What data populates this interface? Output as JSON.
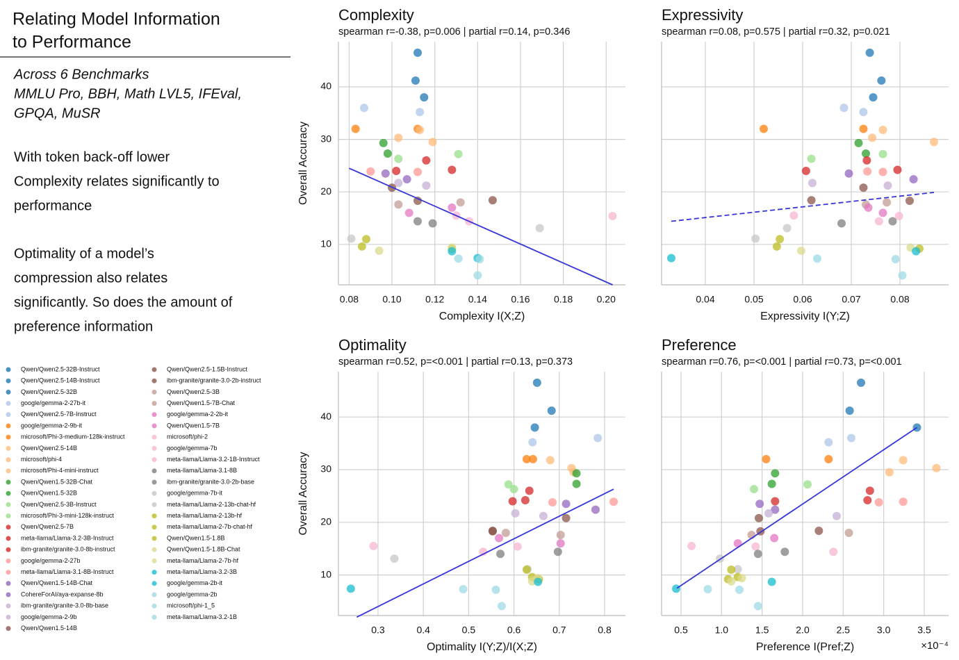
{
  "sidebar": {
    "title_lines": [
      "Relating Model Information",
      "to Performance"
    ],
    "benchmark_lines": [
      "Across 6 Benchmarks",
      "MMLU Pro, BBH, Math LVL5, IFEval,",
      "GPQA, MuSR"
    ],
    "paragraph1_lines": [
      "With token back-off lower",
      "Complexity relates significantly to",
      "performance"
    ],
    "paragraph2_lines": [
      "Optimality of a model’s",
      "compression also relates",
      "significantly. So does the amount of",
      "preference information"
    ]
  },
  "legend": {
    "names": [
      "Qwen/Qwen2.5-32B-Instruct",
      "Qwen/Qwen2.5-14B-Instruct",
      "Qwen/Qwen2.5-32B",
      "google/gemma-2-27b-it",
      "Qwen/Qwen2.5-7B-Instruct",
      "google/gemma-2-9b-it",
      "microsoft/Phi-3-medium-128k-instruct",
      "Qwen/Qwen2.5-14B",
      "microsoft/phi-4",
      "microsoft/Phi-4-mini-instruct",
      "Qwen/Qwen1.5-32B-Chat",
      "Qwen/Qwen1.5-32B",
      "Qwen/Qwen2.5-3B-Instruct",
      "microsoft/Phi-3-mini-128k-instruct",
      "Qwen/Qwen2.5-7B",
      "meta-llama/Llama-3.2-3B-Instruct",
      "ibm-granite/granite-3.0-8b-instruct",
      "google/gemma-2-27b",
      "meta-llama/Llama-3.1-8B-Instruct",
      "Qwen/Qwen1.5-14B-Chat",
      "CohereForAI/aya-expanse-8b",
      "ibm-granite/granite-3.0-8b-base",
      "google/gemma-2-9b",
      "Qwen/Qwen1.5-14B",
      "Qwen/Qwen2.5-1.5B-Instruct",
      "ibm-granite/granite-3.0-2b-instruct",
      "Qwen/Qwen2.5-3B",
      "Qwen/Qwen1.5-7B-Chat",
      "google/gemma-2-2b-it",
      "Qwen/Qwen1.5-7B",
      "microsoft/phi-2",
      "google/gemma-7b",
      "meta-llama/Llama-3.2-1B-Instruct",
      "meta-llama/Llama-3.1-8B",
      "ibm-granite/granite-3.0-2b-base",
      "google/gemma-7b-it",
      "meta-llama/Llama-2-13b-chat-hf",
      "meta-llama/Llama-2-13b-hf",
      "meta-llama/Llama-2-7b-chat-hf",
      "Qwen/Qwen1.5-1.8B",
      "Qwen/Qwen1.5-1.8B-Chat",
      "meta-llama/Llama-2-7b-hf",
      "meta-llama/Llama-3.2-3B",
      "google/gemma-2b-it",
      "google/gemma-2b",
      "microsoft/phi-1_5",
      "meta-llama/Llama-3.2-1B"
    ],
    "colors": [
      "#1f77b4",
      "#1f77b4",
      "#1f77b4",
      "#aec7e8",
      "#aec7e8",
      "#ff7f0e",
      "#ff7f0e",
      "#ffbb78",
      "#ffbb78",
      "#ffbb78",
      "#2ca02c",
      "#2ca02c",
      "#98df8a",
      "#98df8a",
      "#d62728",
      "#d62728",
      "#d62728",
      "#ff9896",
      "#ff9896",
      "#9467bd",
      "#9467bd",
      "#c5b0d5",
      "#c5b0d5",
      "#8c564b",
      "#8c564b",
      "#8c564b",
      "#c49c94",
      "#c49c94",
      "#e377c2",
      "#e377c2",
      "#f7b6d2",
      "#f7b6d2",
      "#f7b6d2",
      "#7f7f7f",
      "#7f7f7f",
      "#c7c7c7",
      "#c7c7c7",
      "#bcbd22",
      "#bcbd22",
      "#bcbd22",
      "#dbdb8d",
      "#dbdb8d",
      "#17becf",
      "#17becf",
      "#9edae5",
      "#9edae5",
      "#9edae5"
    ]
  },
  "chart_data": [
    {
      "type": "scatter",
      "title": "Complexity",
      "subtitle": "spearman r=-0.38, p=0.006 | partial r=0.14, p=0.346",
      "xlabel": "Complexity I(X;Z)",
      "ylabel": "Overall Accuracy",
      "x": [
        0.112,
        0.111,
        0.115,
        0.087,
        0.113,
        0.083,
        0.112,
        0.103,
        0.119,
        0.113,
        0.096,
        0.098,
        0.131,
        0.103,
        0.116,
        0.128,
        0.102,
        0.09,
        0.112,
        0.097,
        0.107,
        0.103,
        0.116,
        0.1,
        0.147,
        0.112,
        0.132,
        0.103,
        0.128,
        0.108,
        0.13,
        0.203,
        0.136,
        0.112,
        0.119,
        0.169,
        0.081,
        0.088,
        0.086,
        0.128,
        0.128,
        0.094,
        0.128,
        0.14,
        0.131,
        0.141,
        0.14
      ],
      "values": [
        46.5,
        41.2,
        38,
        36,
        35.2,
        32,
        32,
        30.3,
        29.5,
        31.8,
        29.3,
        27.3,
        27.2,
        26.3,
        26,
        24.2,
        24,
        23.9,
        23.8,
        23.5,
        22.4,
        21.7,
        21.2,
        20.8,
        18.4,
        18.3,
        18,
        17.6,
        17,
        16,
        15.5,
        15.4,
        14.4,
        14.4,
        14,
        13.1,
        11.1,
        11,
        9.6,
        9.2,
        9.4,
        8.8,
        8.7,
        7.4,
        7.3,
        7.2,
        4.1
      ],
      "xlim": [
        0.075,
        0.209
      ],
      "ylim": [
        2.3,
        48.6
      ],
      "xticks": [
        0.08,
        {
          "value": 0.1,
          "label": "0.10"
        },
        0.12,
        0.14,
        0.16,
        0.18,
        {
          "value": 0.2,
          "label": "0.20"
        }
      ],
      "yticks": [
        10,
        20,
        30,
        40
      ],
      "grid": true,
      "show_ytick_labels": true,
      "fit": {
        "x": [
          0.08,
          0.203
        ],
        "y": [
          24.5,
          2.3
        ],
        "color": "#3535d8",
        "style": "solid"
      }
    },
    {
      "type": "scatter",
      "title": "Expressivity",
      "subtitle": "spearman r=0.08, p=0.575 | partial r=0.32, p=0.021",
      "xlabel": "Expressivity I(Y;Z)",
      "x": [
        0.0738,
        0.0762,
        0.0745,
        0.0685,
        0.0725,
        0.052,
        0.0725,
        0.0743,
        0.087,
        0.0765,
        0.0715,
        0.073,
        0.0765,
        0.0618,
        0.0732,
        0.0795,
        0.0607,
        0.0733,
        0.0765,
        0.0695,
        0.0828,
        0.062,
        0.0775,
        0.0725,
        0.0618,
        0.082,
        0.0773,
        0.073,
        0.0735,
        0.0765,
        0.0582,
        0.0798,
        0.0757,
        0.0785,
        0.068,
        0.0568,
        0.0503,
        0.0553,
        0.0547,
        0.084,
        0.0822,
        0.0597,
        0.0833,
        0.033,
        0.063,
        0.0791,
        0.0805
      ],
      "values": [
        46.5,
        41.2,
        38,
        36,
        35.2,
        32,
        32,
        30.3,
        29.5,
        31.8,
        29.3,
        27.3,
        27.2,
        26.3,
        26,
        24.2,
        24,
        23.9,
        23.8,
        23.5,
        22.4,
        21.7,
        21.2,
        20.8,
        18.4,
        18.3,
        18,
        17.6,
        17,
        16,
        15.5,
        15.4,
        14.4,
        14.4,
        14,
        13.1,
        11.1,
        11,
        9.6,
        9.2,
        9.4,
        8.8,
        8.7,
        7.4,
        7.3,
        7.2,
        4.1
      ],
      "xlim": [
        0.031,
        0.09
      ],
      "ylim": [
        2.3,
        48.6
      ],
      "xticks": [
        0.04,
        0.05,
        0.06,
        0.07,
        0.08
      ],
      "yticks": [
        10,
        20,
        30,
        40
      ],
      "grid": true,
      "show_ytick_labels": false,
      "fit": {
        "x": [
          0.033,
          0.087
        ],
        "y": [
          14.4,
          19.9
        ],
        "color": "#3535d8",
        "style": "dashed"
      }
    },
    {
      "type": "scatter",
      "title": "Optimality",
      "subtitle": "spearman r=0.52, p=<0.001 | partial r=0.13, p=0.373",
      "xlabel": "Optimality I(Y;Z)/I(X;Z)",
      "ylabel": "Overall Accuracy",
      "x": [
        0.651,
        0.683,
        0.646,
        0.785,
        0.641,
        0.628,
        0.642,
        0.727,
        0.732,
        0.68,
        0.738,
        0.738,
        0.588,
        0.6,
        0.634,
        0.625,
        0.597,
        0.82,
        0.685,
        0.715,
        0.78,
        0.603,
        0.665,
        0.715,
        0.553,
        0.553,
        0.582,
        0.703,
        0.567,
        0.703,
        0.29,
        0.608,
        0.532,
        0.697,
        0.57,
        0.336,
        0.63,
        0.628,
        0.64,
        0.655,
        0.652,
        0.64,
        0.653,
        0.24,
        0.488,
        0.56,
        0.573
      ],
      "values": [
        46.5,
        41.2,
        38,
        36,
        35.2,
        32,
        32,
        30.3,
        29.5,
        31.8,
        29.3,
        27.3,
        27.2,
        26.3,
        26,
        24.2,
        24,
        23.9,
        23.8,
        23.5,
        22.4,
        21.7,
        21.2,
        20.8,
        18.4,
        18.3,
        18,
        17.6,
        17,
        16,
        15.5,
        15.4,
        14.4,
        14.4,
        14,
        13.1,
        11.1,
        11,
        9.6,
        9.2,
        9.4,
        8.8,
        8.7,
        7.4,
        7.3,
        7.2,
        4.1
      ],
      "xlim": [
        0.2126,
        0.846
      ],
      "ylim": [
        2.3,
        48.6
      ],
      "xticks": [
        0.3,
        0.4,
        0.5,
        0.6,
        0.7,
        0.8
      ],
      "yticks": [
        10,
        20,
        30,
        40
      ],
      "grid": true,
      "show_ytick_labels": true,
      "fit": {
        "x": [
          0.253,
          0.82
        ],
        "y": [
          2,
          26.3
        ],
        "color": "#3535d8",
        "style": "solid"
      }
    },
    {
      "type": "scatter",
      "title": "Preference",
      "subtitle": "spearman r=0.76, p=<0.001 | partial r=0.73, p=<0.001",
      "xlabel": "Preference I(Pref;Z)",
      "offset_label": "×10⁻⁴",
      "x": [
        2.72,
        2.58,
        3.41,
        2.6,
        2.32,
        1.55,
        2.32,
        3.65,
        3.07,
        3.24,
        1.66,
        1.62,
        2.06,
        1.4,
        2.83,
        2.8,
        1.66,
        3.24,
        2.94,
        1.47,
        1.66,
        1.58,
        2.42,
        1.46,
        2.2,
        1.48,
        2.57,
        1.37,
        1.65,
        1.2,
        0.63,
        1.42,
        2.38,
        1.78,
        1.45,
        0.98,
        1.2,
        1.12,
        1.2,
        1.08,
        1.25,
        1.12,
        1.62,
        0.44,
        0.83,
        1.22,
        1.45
      ],
      "values": [
        46.5,
        41.2,
        38,
        36,
        35.2,
        32,
        32,
        30.3,
        29.5,
        31.8,
        29.3,
        27.3,
        27.2,
        26.3,
        26,
        24.2,
        24,
        23.9,
        23.8,
        23.5,
        22.4,
        21.7,
        21.2,
        20.8,
        18.4,
        18.3,
        18,
        17.6,
        17,
        16,
        15.5,
        15.4,
        14.4,
        14.4,
        14,
        13.1,
        11.1,
        11,
        9.6,
        9.2,
        9.4,
        8.8,
        8.7,
        7.4,
        7.3,
        7.2,
        4.1
      ],
      "xlim": [
        0.26,
        3.8
      ],
      "ylim": [
        2.3,
        48.6
      ],
      "xticks": [
        0.5,
        {
          "value": 1,
          "label": "1.0"
        },
        1.5,
        {
          "value": 2,
          "label": "2.0"
        },
        2.5,
        {
          "value": 3,
          "label": "3.0"
        },
        3.5
      ],
      "yticks": [
        10,
        20,
        30,
        40
      ],
      "grid": true,
      "show_ytick_labels": false,
      "fit": {
        "x": [
          0.45,
          3.41
        ],
        "y": [
          7.5,
          38
        ],
        "color": "#3535d8",
        "style": "solid"
      }
    }
  ]
}
